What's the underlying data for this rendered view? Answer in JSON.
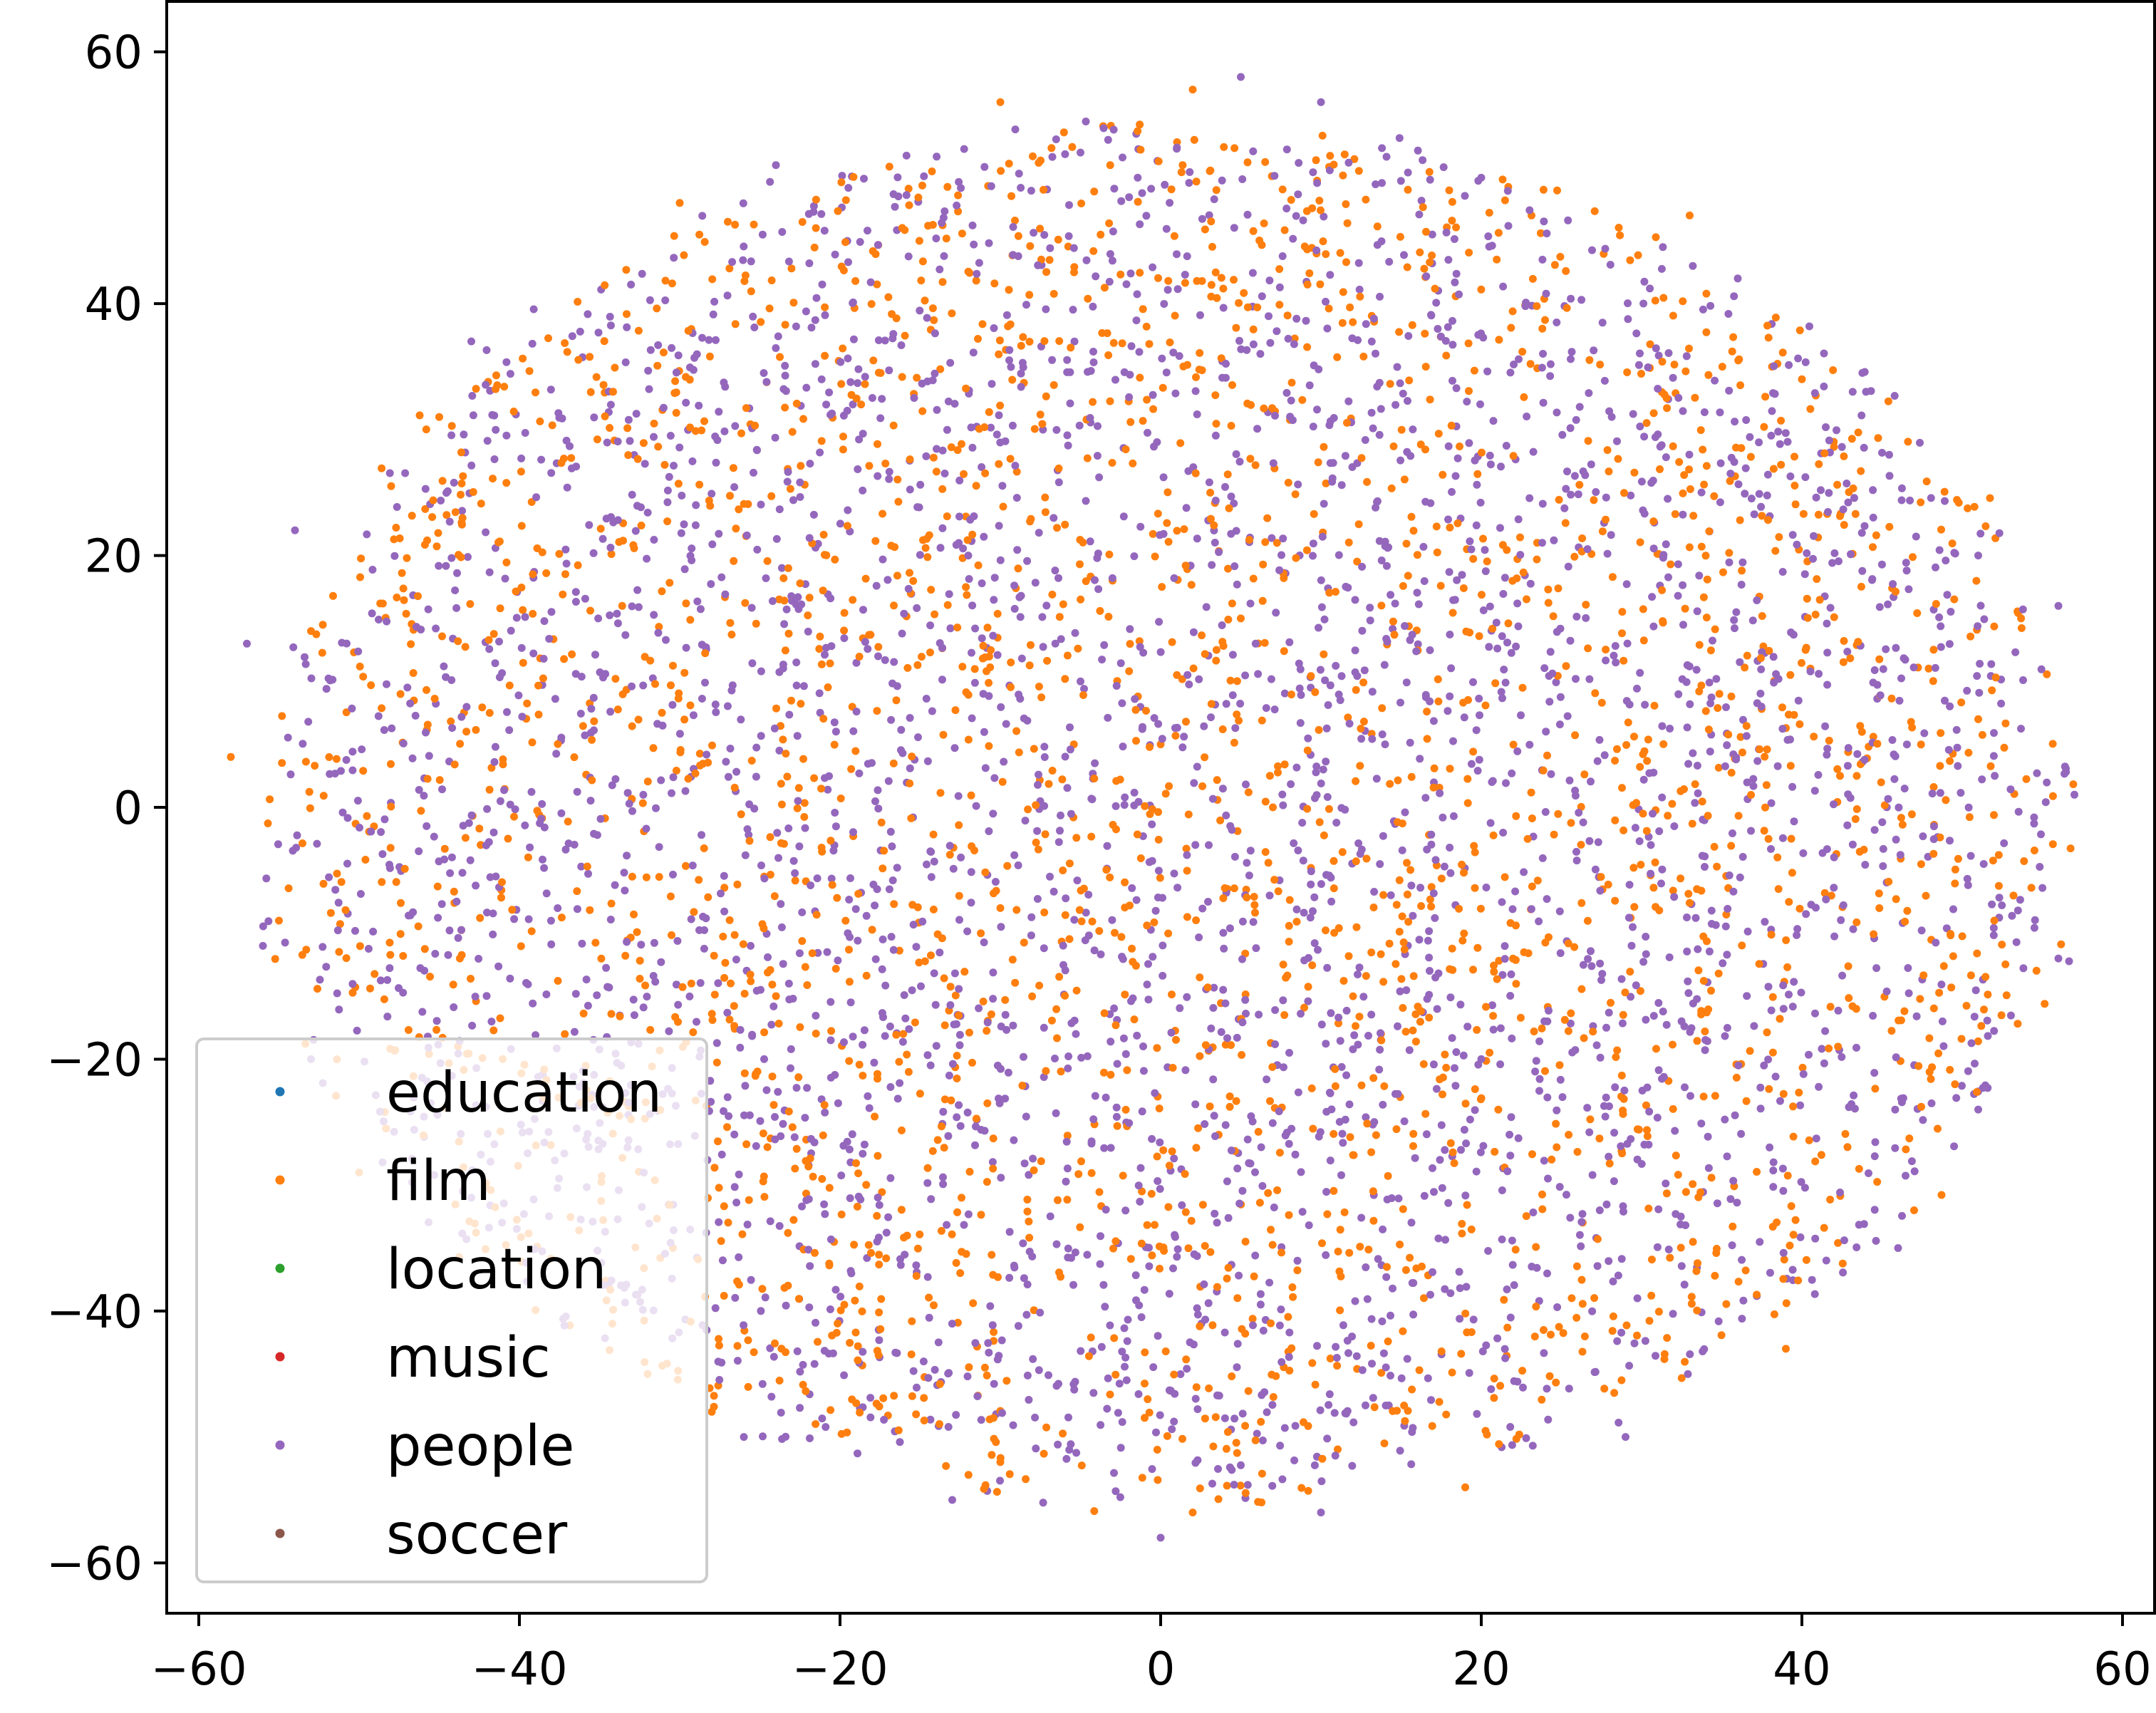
{
  "chart_data": {
    "type": "scatter",
    "title": "",
    "xlabel": "",
    "ylabel": "",
    "xlim": [
      -62,
      62
    ],
    "ylim": [
      -64,
      64
    ],
    "xticks": [
      -60,
      -40,
      -20,
      0,
      20,
      40,
      60
    ],
    "yticks": [
      -60,
      -40,
      -20,
      0,
      20,
      40,
      60
    ],
    "xtick_labels": [
      "−60",
      "−40",
      "−20",
      "0",
      "20",
      "40",
      "60"
    ],
    "ytick_labels": [
      "−60",
      "−40",
      "−20",
      "0",
      "20",
      "40",
      "60"
    ],
    "grid": false,
    "legend_position": "lower-left",
    "point_distribution": "roughly uniform disc cloud centered near (0, 0), radius about 57 in x and 55 in y",
    "series": [
      {
        "name": "education",
        "color": "#1f77b4",
        "approx_points": 0
      },
      {
        "name": "film",
        "color": "#ff7f0e",
        "approx_points": 2600
      },
      {
        "name": "location",
        "color": "#2ca02c",
        "approx_points": 0
      },
      {
        "name": "music",
        "color": "#d62728",
        "approx_points": 0
      },
      {
        "name": "people",
        "color": "#9467bd",
        "approx_points": 3300
      },
      {
        "name": "soccer",
        "color": "#8c564b",
        "approx_points": 0
      }
    ],
    "sample_points": {
      "film": [
        [
          -58,
          4
        ],
        [
          -45,
          31
        ],
        [
          -30,
          48
        ],
        [
          -10,
          56
        ],
        [
          2,
          57
        ],
        [
          18,
          49
        ],
        [
          33,
          47
        ],
        [
          40,
          34
        ],
        [
          51,
          7
        ],
        [
          52,
          -9
        ],
        [
          47,
          -32
        ],
        [
          39,
          -43
        ],
        [
          19,
          -54
        ],
        [
          2,
          -56
        ],
        [
          -10,
          -52
        ],
        [
          -28,
          -48
        ],
        [
          -32,
          -45
        ],
        [
          -50,
          -29
        ],
        [
          -55,
          -9
        ],
        [
          -53,
          14
        ],
        [
          5,
          15
        ],
        [
          -3,
          18
        ],
        [
          7,
          0
        ],
        [
          -10,
          -8
        ],
        [
          12,
          -15
        ],
        [
          0,
          5
        ]
      ],
      "people": [
        [
          -57,
          13
        ],
        [
          -54,
          22
        ],
        [
          -43,
          37
        ],
        [
          -24,
          51
        ],
        [
          -5,
          52
        ],
        [
          5,
          58
        ],
        [
          10,
          56
        ],
        [
          20,
          50
        ],
        [
          36,
          42
        ],
        [
          44,
          33
        ],
        [
          51,
          20
        ],
        [
          56,
          16
        ],
        [
          57,
          1
        ],
        [
          56,
          -12
        ],
        [
          51,
          -24
        ],
        [
          46,
          -35
        ],
        [
          29,
          -50
        ],
        [
          10,
          -56
        ],
        [
          0,
          -58
        ],
        [
          -13,
          -55
        ],
        [
          -26,
          -50
        ],
        [
          -43,
          -31
        ],
        [
          -53,
          -20
        ],
        [
          -56,
          -11
        ],
        [
          -5,
          10
        ],
        [
          3,
          -3
        ],
        [
          14,
          5
        ],
        [
          -12,
          20
        ],
        [
          20,
          -20
        ]
      ]
    }
  },
  "legend": {
    "items": [
      {
        "label": "education",
        "color": "#1f77b4"
      },
      {
        "label": "film",
        "color": "#ff7f0e"
      },
      {
        "label": "location",
        "color": "#2ca02c"
      },
      {
        "label": "music",
        "color": "#d62728"
      },
      {
        "label": "people",
        "color": "#9467bd"
      },
      {
        "label": "soccer",
        "color": "#8c564b"
      }
    ]
  }
}
